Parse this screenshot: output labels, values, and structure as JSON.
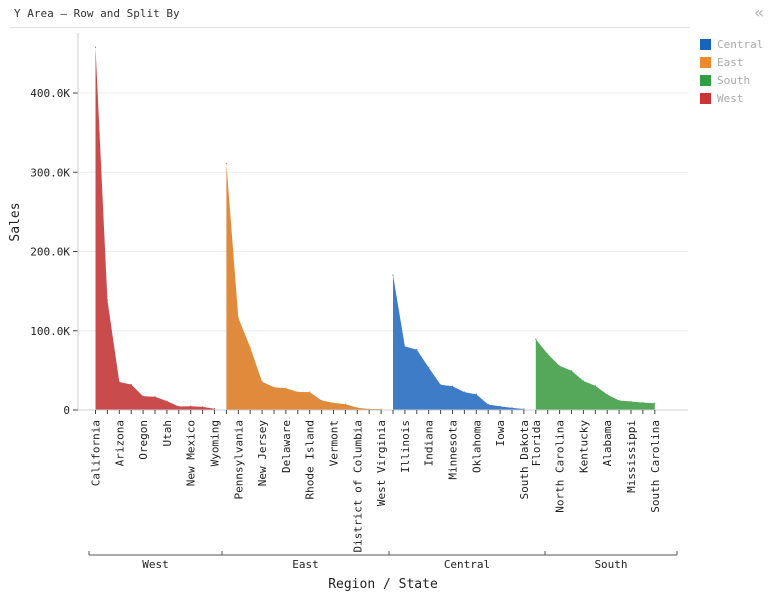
{
  "header": {
    "title": "Y Area – Row and Split By",
    "collapse_icon": "«"
  },
  "legend": [
    {
      "name": "Central",
      "color": "#1565c0"
    },
    {
      "name": "East",
      "color": "#ef8a2b"
    },
    {
      "name": "South",
      "color": "#2ea043"
    },
    {
      "name": "West",
      "color": "#cc3333"
    }
  ],
  "chart_data": {
    "type": "area",
    "xlabel": "Region / State",
    "ylabel": "Sales",
    "ylim": [
      0,
      460000
    ],
    "yticks": [
      {
        "value": 0,
        "label": "0"
      },
      {
        "value": 100000,
        "label": "100.0K"
      },
      {
        "value": 200000,
        "label": "200.0K"
      },
      {
        "value": 300000,
        "label": "300.0K"
      },
      {
        "value": 400000,
        "label": "400.0K"
      }
    ],
    "grid": true,
    "legend_position": "top-right",
    "groups": [
      {
        "name": "West",
        "color": "#c94b4b",
        "states": [
          "California",
          "Arizona",
          "Oregon",
          "Utah",
          "New Mexico",
          "Wyoming"
        ],
        "points": [
          {
            "state": "California",
            "value": 457688
          },
          {
            "value": 138641
          },
          {
            "state": "Arizona",
            "value": 35282
          },
          {
            "value": 32115
          },
          {
            "state": "Oregon",
            "value": 17431
          },
          {
            "value": 16729
          },
          {
            "state": "Utah",
            "value": 11220
          },
          {
            "value": 4382
          },
          {
            "state": "New Mexico",
            "value": 4783
          },
          {
            "value": 3910
          },
          {
            "state": "Wyoming",
            "value": 1603
          }
        ]
      },
      {
        "name": "East",
        "color": "#e08a3c",
        "states": [
          "Pennsylvania",
          "New Jersey",
          "Delaware",
          "Rhode Island",
          "Vermont",
          "District of Columbia",
          "West Virginia"
        ],
        "points": [
          {
            "value": 310876
          },
          {
            "state": "Pennsylvania",
            "value": 116512
          },
          {
            "value": 79000
          },
          {
            "state": "New Jersey",
            "value": 35764
          },
          {
            "value": 28634
          },
          {
            "state": "Delaware",
            "value": 27451
          },
          {
            "value": 22681
          },
          {
            "state": "Rhode Island",
            "value": 22628
          },
          {
            "value": 12000
          },
          {
            "state": "Vermont",
            "value": 8929
          },
          {
            "value": 7464
          },
          {
            "state": "District of Columbia",
            "value": 2865
          },
          {
            "value": 1210
          },
          {
            "state": "West Virginia",
            "value": 1210
          }
        ]
      },
      {
        "name": "Central",
        "color": "#3e7cc8",
        "states": [
          "Illinois",
          "Indiana",
          "Minnesota",
          "Oklahoma",
          "Iowa",
          "South Dakota"
        ],
        "points": [
          {
            "value": 170188
          },
          {
            "state": "Illinois",
            "value": 80166
          },
          {
            "value": 76269
          },
          {
            "state": "Indiana",
            "value": 53556
          },
          {
            "value": 31798
          },
          {
            "state": "Minnesota",
            "value": 29863
          },
          {
            "value": 22572
          },
          {
            "state": "Oklahoma",
            "value": 19683
          },
          {
            "value": 7000
          },
          {
            "state": "Iowa",
            "value": 4580
          },
          {
            "value": 2700
          },
          {
            "state": "South Dakota",
            "value": 1316
          }
        ]
      },
      {
        "name": "South",
        "color": "#55a85a",
        "states": [
          "Florida",
          "North Carolina",
          "Kentucky",
          "Alabama",
          "Mississippi",
          "South Carolina"
        ],
        "points": [
          {
            "state": "Florida",
            "value": 89474
          },
          {
            "value": 70636
          },
          {
            "state": "North Carolina",
            "value": 55603
          },
          {
            "value": 49543
          },
          {
            "state": "Kentucky",
            "value": 36592
          },
          {
            "value": 30662
          },
          {
            "state": "Alabama",
            "value": 19511
          },
          {
            "value": 12000
          },
          {
            "state": "Mississippi",
            "value": 10771
          },
          {
            "value": 9300
          },
          {
            "state": "South Carolina",
            "value": 8482
          }
        ]
      }
    ]
  }
}
